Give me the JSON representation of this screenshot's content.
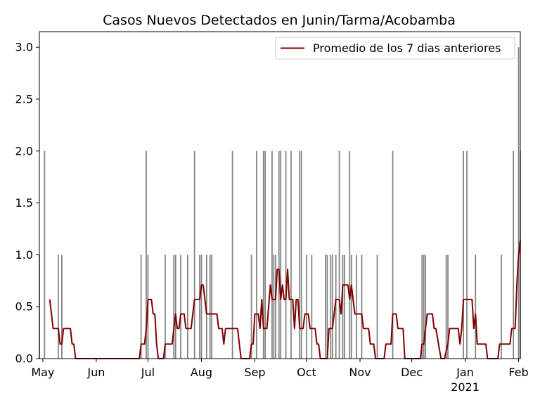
{
  "chart_data": {
    "type": "bar",
    "title": "Casos Nuevos Detectados en Junin/Tarma/Acobamba",
    "xlabel": "",
    "ylabel": "",
    "x_range": [
      "2020-04-29",
      "2021-02-02"
    ],
    "ylim": [
      0,
      3.15
    ],
    "y_ticks": [
      0.0,
      0.5,
      1.0,
      1.5,
      2.0,
      2.5,
      3.0
    ],
    "y_tick_labels": [
      "0.0",
      "0.5",
      "1.0",
      "1.5",
      "2.0",
      "2.5",
      "3.0"
    ],
    "x_ticks": [
      {
        "date": "2020-05-01",
        "label": "May",
        "sublabel": ""
      },
      {
        "date": "2020-06-01",
        "label": "Jun",
        "sublabel": ""
      },
      {
        "date": "2020-07-01",
        "label": "Jul",
        "sublabel": ""
      },
      {
        "date": "2020-08-01",
        "label": "Aug",
        "sublabel": ""
      },
      {
        "date": "2020-09-01",
        "label": "Sep",
        "sublabel": ""
      },
      {
        "date": "2020-10-01",
        "label": "Oct",
        "sublabel": ""
      },
      {
        "date": "2020-11-01",
        "label": "Nov",
        "sublabel": ""
      },
      {
        "date": "2020-12-01",
        "label": "Dec",
        "sublabel": ""
      },
      {
        "date": "2021-01-01",
        "label": "Jan",
        "sublabel": "2021"
      },
      {
        "date": "2021-02-01",
        "label": "Feb",
        "sublabel": ""
      }
    ],
    "grid": false,
    "legend": {
      "position": "top-right",
      "entries": [
        "Promedio de los 7 dias anteriores"
      ]
    },
    "colors": {
      "bars": "#808080",
      "line": "#800000"
    },
    "series": [
      {
        "kind": "bar",
        "points": [
          [
            "2020-04-29",
            1
          ],
          [
            "2020-05-02",
            2
          ],
          [
            "2020-05-10",
            1
          ],
          [
            "2020-05-12",
            1
          ],
          [
            "2020-06-27",
            1
          ],
          [
            "2020-06-30",
            2
          ],
          [
            "2020-07-01",
            1
          ],
          [
            "2020-07-11",
            1
          ],
          [
            "2020-07-16",
            1
          ],
          [
            "2020-07-17",
            1
          ],
          [
            "2020-07-20",
            1
          ],
          [
            "2020-07-24",
            1
          ],
          [
            "2020-07-28",
            2
          ],
          [
            "2020-07-31",
            1
          ],
          [
            "2020-08-01",
            1
          ],
          [
            "2020-08-04",
            1
          ],
          [
            "2020-08-06",
            1
          ],
          [
            "2020-08-07",
            1
          ],
          [
            "2020-08-19",
            2
          ],
          [
            "2020-08-30",
            1
          ],
          [
            "2020-09-02",
            2
          ],
          [
            "2020-09-06",
            2
          ],
          [
            "2020-09-07",
            2
          ],
          [
            "2020-09-11",
            2
          ],
          [
            "2020-09-12",
            1
          ],
          [
            "2020-09-13",
            1
          ],
          [
            "2020-09-15",
            2
          ],
          [
            "2020-09-16",
            2
          ],
          [
            "2020-09-19",
            2
          ],
          [
            "2020-09-22",
            2
          ],
          [
            "2020-09-27",
            2
          ],
          [
            "2020-09-28",
            2
          ],
          [
            "2020-10-01",
            1
          ],
          [
            "2020-10-04",
            1
          ],
          [
            "2020-10-12",
            1
          ],
          [
            "2020-10-13",
            1
          ],
          [
            "2020-10-15",
            1
          ],
          [
            "2020-10-16",
            1
          ],
          [
            "2020-10-18",
            1
          ],
          [
            "2020-10-20",
            2
          ],
          [
            "2020-10-22",
            1
          ],
          [
            "2020-10-23",
            1
          ],
          [
            "2020-10-26",
            2
          ],
          [
            "2020-10-27",
            1
          ],
          [
            "2020-10-30",
            1
          ],
          [
            "2020-11-02",
            1
          ],
          [
            "2020-11-11",
            1
          ],
          [
            "2020-11-20",
            2
          ],
          [
            "2020-12-07",
            1
          ],
          [
            "2020-12-08",
            1
          ],
          [
            "2020-12-09",
            1
          ],
          [
            "2020-12-21",
            1
          ],
          [
            "2020-12-22",
            1
          ],
          [
            "2020-12-31",
            2
          ],
          [
            "2021-01-02",
            2
          ],
          [
            "2021-01-07",
            1
          ],
          [
            "2021-01-22",
            1
          ],
          [
            "2021-01-29",
            2
          ],
          [
            "2021-02-01",
            3
          ],
          [
            "2021-02-02",
            2
          ]
        ]
      },
      {
        "kind": "line",
        "name": "Promedio de los 7 dias anteriores",
        "points": [
          [
            "2020-05-05",
            0.57
          ],
          [
            "2020-05-07",
            0.29
          ],
          [
            "2020-05-10",
            0.29
          ],
          [
            "2020-05-11",
            0.14
          ],
          [
            "2020-05-12",
            0.14
          ],
          [
            "2020-05-13",
            0.29
          ],
          [
            "2020-05-17",
            0.29
          ],
          [
            "2020-05-18",
            0.14
          ],
          [
            "2020-05-19",
            0.14
          ],
          [
            "2020-05-20",
            0.0
          ],
          [
            "2020-06-26",
            0.0
          ],
          [
            "2020-06-27",
            0.14
          ],
          [
            "2020-06-29",
            0.14
          ],
          [
            "2020-06-30",
            0.29
          ],
          [
            "2020-07-01",
            0.57
          ],
          [
            "2020-07-03",
            0.57
          ],
          [
            "2020-07-04",
            0.43
          ],
          [
            "2020-07-05",
            0.43
          ],
          [
            "2020-07-06",
            0.14
          ],
          [
            "2020-07-07",
            0.0
          ],
          [
            "2020-07-10",
            0.0
          ],
          [
            "2020-07-11",
            0.14
          ],
          [
            "2020-07-15",
            0.14
          ],
          [
            "2020-07-17",
            0.43
          ],
          [
            "2020-07-18",
            0.29
          ],
          [
            "2020-07-19",
            0.29
          ],
          [
            "2020-07-20",
            0.43
          ],
          [
            "2020-07-22",
            0.43
          ],
          [
            "2020-07-23",
            0.29
          ],
          [
            "2020-07-26",
            0.29
          ],
          [
            "2020-07-28",
            0.57
          ],
          [
            "2020-07-31",
            0.57
          ],
          [
            "2020-08-01",
            0.71
          ],
          [
            "2020-08-02",
            0.71
          ],
          [
            "2020-08-04",
            0.43
          ],
          [
            "2020-08-10",
            0.43
          ],
          [
            "2020-08-11",
            0.29
          ],
          [
            "2020-08-13",
            0.29
          ],
          [
            "2020-08-14",
            0.14
          ],
          [
            "2020-08-15",
            0.29
          ],
          [
            "2020-08-22",
            0.29
          ],
          [
            "2020-08-23",
            0.14
          ],
          [
            "2020-08-24",
            0.0
          ],
          [
            "2020-08-29",
            0.0
          ],
          [
            "2020-08-30",
            0.14
          ],
          [
            "2020-08-31",
            0.14
          ],
          [
            "2020-09-01",
            0.43
          ],
          [
            "2020-09-03",
            0.43
          ],
          [
            "2020-09-04",
            0.29
          ],
          [
            "2020-09-05",
            0.57
          ],
          [
            "2020-09-06",
            0.29
          ],
          [
            "2020-09-08",
            0.29
          ],
          [
            "2020-09-10",
            0.71
          ],
          [
            "2020-09-11",
            0.57
          ],
          [
            "2020-09-13",
            0.57
          ],
          [
            "2020-09-14",
            0.86
          ],
          [
            "2020-09-15",
            0.86
          ],
          [
            "2020-09-16",
            0.57
          ],
          [
            "2020-09-17",
            0.71
          ],
          [
            "2020-09-18",
            0.57
          ],
          [
            "2020-09-19",
            0.57
          ],
          [
            "2020-09-20",
            0.86
          ],
          [
            "2020-09-21",
            0.57
          ],
          [
            "2020-09-23",
            0.57
          ],
          [
            "2020-09-24",
            0.29
          ],
          [
            "2020-09-25",
            0.57
          ],
          [
            "2020-09-26",
            0.57
          ],
          [
            "2020-09-27",
            0.29
          ],
          [
            "2020-09-29",
            0.29
          ],
          [
            "2020-09-30",
            0.43
          ],
          [
            "2020-10-02",
            0.43
          ],
          [
            "2020-10-03",
            0.29
          ],
          [
            "2020-10-06",
            0.29
          ],
          [
            "2020-10-07",
            0.14
          ],
          [
            "2020-10-08",
            0.14
          ],
          [
            "2020-10-09",
            0.0
          ],
          [
            "2020-10-13",
            0.0
          ],
          [
            "2020-10-14",
            0.29
          ],
          [
            "2020-10-16",
            0.29
          ],
          [
            "2020-10-18",
            0.57
          ],
          [
            "2020-10-20",
            0.57
          ],
          [
            "2020-10-21",
            0.43
          ],
          [
            "2020-10-22",
            0.71
          ],
          [
            "2020-10-25",
            0.71
          ],
          [
            "2020-10-26",
            0.57
          ],
          [
            "2020-10-27",
            0.71
          ],
          [
            "2020-10-28",
            0.57
          ],
          [
            "2020-10-29",
            0.43
          ],
          [
            "2020-11-02",
            0.43
          ],
          [
            "2020-11-03",
            0.29
          ],
          [
            "2020-11-06",
            0.29
          ],
          [
            "2020-11-07",
            0.14
          ],
          [
            "2020-11-09",
            0.14
          ],
          [
            "2020-11-10",
            0.0
          ],
          [
            "2020-11-15",
            0.0
          ],
          [
            "2020-11-16",
            0.14
          ],
          [
            "2020-11-19",
            0.14
          ],
          [
            "2020-11-20",
            0.43
          ],
          [
            "2020-11-22",
            0.43
          ],
          [
            "2020-11-23",
            0.29
          ],
          [
            "2020-11-26",
            0.29
          ],
          [
            "2020-11-27",
            0.0
          ],
          [
            "2020-12-06",
            0.0
          ],
          [
            "2020-12-07",
            0.14
          ],
          [
            "2020-12-08",
            0.14
          ],
          [
            "2020-12-09",
            0.29
          ],
          [
            "2020-12-10",
            0.43
          ],
          [
            "2020-12-13",
            0.43
          ],
          [
            "2020-12-14",
            0.29
          ],
          [
            "2020-12-15",
            0.29
          ],
          [
            "2020-12-18",
            0.0
          ],
          [
            "2020-12-20",
            0.0
          ],
          [
            "2020-12-22",
            0.14
          ],
          [
            "2020-12-23",
            0.29
          ],
          [
            "2020-12-28",
            0.29
          ],
          [
            "2020-12-29",
            0.14
          ],
          [
            "2020-12-30",
            0.29
          ],
          [
            "2020-12-31",
            0.57
          ],
          [
            "2021-01-05",
            0.57
          ],
          [
            "2021-01-06",
            0.29
          ],
          [
            "2021-01-07",
            0.43
          ],
          [
            "2021-01-08",
            0.14
          ],
          [
            "2021-01-13",
            0.14
          ],
          [
            "2021-01-14",
            0.0
          ],
          [
            "2021-01-20",
            0.0
          ],
          [
            "2021-01-21",
            0.14
          ],
          [
            "2021-01-27",
            0.14
          ],
          [
            "2021-01-28",
            0.29
          ],
          [
            "2021-01-30",
            0.29
          ],
          [
            "2021-01-31",
            0.71
          ],
          [
            "2021-02-01",
            1.0
          ],
          [
            "2021-02-02",
            1.14
          ]
        ]
      }
    ]
  }
}
